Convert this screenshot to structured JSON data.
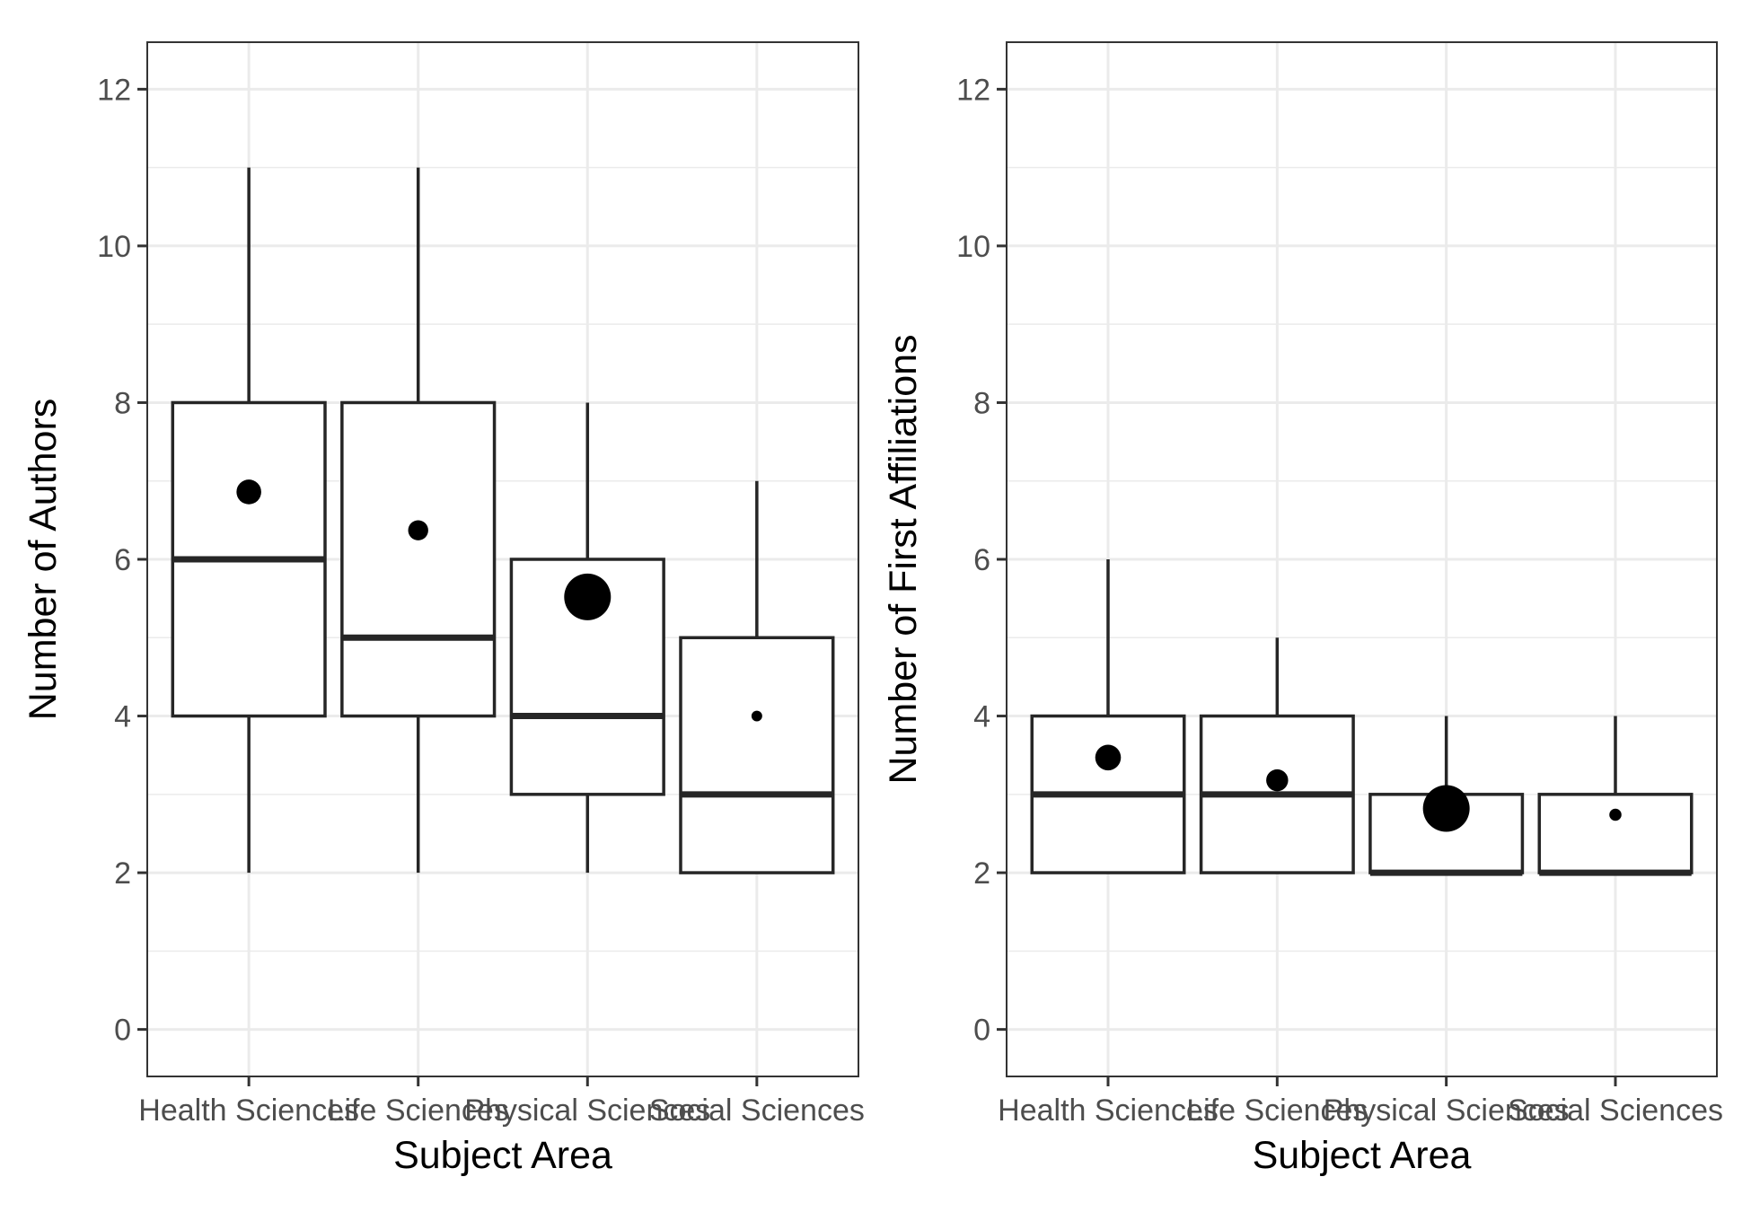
{
  "chart_data": [
    {
      "type": "box",
      "xlabel": "Subject Area",
      "ylabel": "Number of Authors",
      "ylim": [
        -0.6,
        12.6
      ],
      "yticks": [
        0,
        2,
        4,
        6,
        8,
        10,
        12
      ],
      "grid": true,
      "categories": [
        "Health Sciences",
        "Life Sciences",
        "Physical Sciences",
        "Social Sciences"
      ],
      "boxes": [
        {
          "whisker_low": 2,
          "q1": 4,
          "median": 6,
          "q3": 8,
          "whisker_high": 11
        },
        {
          "whisker_low": 2,
          "q1": 4,
          "median": 5,
          "q3": 8,
          "whisker_high": 11
        },
        {
          "whisker_low": 2,
          "q1": 3,
          "median": 4,
          "q3": 6,
          "whisker_high": 8
        },
        {
          "whisker_low": 2,
          "q1": 2,
          "median": 3,
          "q3": 5,
          "whisker_high": 7
        }
      ],
      "points": [
        {
          "y": 6.86,
          "relative_size": 0.53
        },
        {
          "y": 6.37,
          "relative_size": 0.43
        },
        {
          "y": 5.52,
          "relative_size": 1.0
        },
        {
          "y": 4.0,
          "relative_size": 0.23
        }
      ]
    },
    {
      "type": "box",
      "xlabel": "Subject Area",
      "ylabel": "Number of First Affiliations",
      "ylim": [
        -0.6,
        12.6
      ],
      "yticks": [
        0,
        2,
        4,
        6,
        8,
        10,
        12
      ],
      "grid": true,
      "categories": [
        "Health Sciences",
        "Life Sciences",
        "Physical Sciences",
        "Social Sciences"
      ],
      "boxes": [
        {
          "whisker_low": 2,
          "q1": 2,
          "median": 3,
          "q3": 4,
          "whisker_high": 6
        },
        {
          "whisker_low": 2,
          "q1": 2,
          "median": 3,
          "q3": 4,
          "whisker_high": 5
        },
        {
          "whisker_low": 2,
          "q1": 2,
          "median": 2,
          "q3": 3,
          "whisker_high": 4
        },
        {
          "whisker_low": 2,
          "q1": 2,
          "median": 2,
          "q3": 3,
          "whisker_high": 4
        }
      ],
      "points": [
        {
          "y": 3.47,
          "relative_size": 0.55
        },
        {
          "y": 3.18,
          "relative_size": 0.47
        },
        {
          "y": 2.82,
          "relative_size": 1.0
        },
        {
          "y": 2.74,
          "relative_size": 0.26
        }
      ]
    }
  ]
}
